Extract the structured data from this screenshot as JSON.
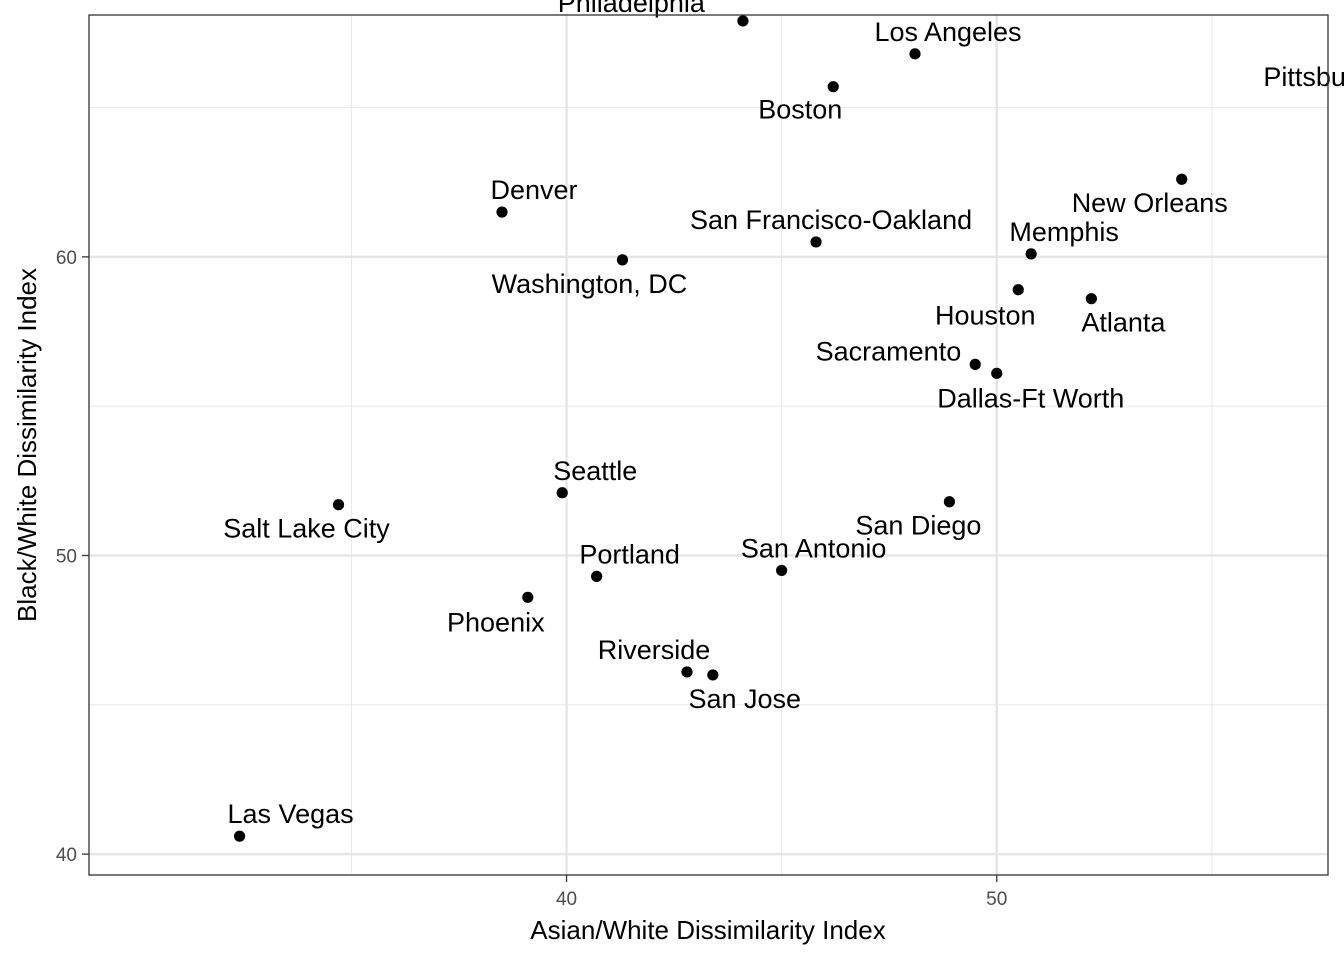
{
  "chart_data": {
    "type": "scatter",
    "xlabel": "Asian/White Dissimilarity Index",
    "ylabel": "Black/White Dissimilarity Index",
    "xlim": [
      28.9,
      57.7
    ],
    "ylim": [
      39.3,
      68.1
    ],
    "x_major_ticks": [
      40,
      50
    ],
    "y_major_ticks": [
      40,
      50,
      60
    ],
    "x_minor_ticks": [
      35,
      45,
      55
    ],
    "y_minor_ticks": [
      45,
      55,
      65
    ],
    "grid": true,
    "theme": "black-and-white",
    "points": [
      {
        "label": "Philadelphia",
        "x": 44.1,
        "y": 67.9
      },
      {
        "label": "Los Angeles",
        "x": 48.1,
        "y": 66.8
      },
      {
        "label": "Pittsburgh",
        "x": 58.4,
        "y": 66.8
      },
      {
        "label": "Boston",
        "x": 46.2,
        "y": 65.7
      },
      {
        "label": "New Orleans",
        "x": 54.3,
        "y": 62.6
      },
      {
        "label": "Denver",
        "x": 38.5,
        "y": 61.5
      },
      {
        "label": "San Francisco-Oakland",
        "x": 45.8,
        "y": 60.5
      },
      {
        "label": "Memphis",
        "x": 50.8,
        "y": 60.1
      },
      {
        "label": "Washington, DC",
        "x": 41.3,
        "y": 59.9
      },
      {
        "label": "Houston",
        "x": 50.5,
        "y": 58.9
      },
      {
        "label": "Atlanta",
        "x": 52.2,
        "y": 58.6
      },
      {
        "label": "Sacramento",
        "x": 49.5,
        "y": 56.4
      },
      {
        "label": "Dallas-Ft Worth",
        "x": 50.0,
        "y": 56.1
      },
      {
        "label": "Seattle",
        "x": 39.9,
        "y": 52.1
      },
      {
        "label": "San Diego",
        "x": 48.9,
        "y": 51.8
      },
      {
        "label": "Salt Lake City",
        "x": 34.7,
        "y": 51.7
      },
      {
        "label": "San Antonio",
        "x": 45.0,
        "y": 49.5
      },
      {
        "label": "Portland",
        "x": 40.7,
        "y": 49.3
      },
      {
        "label": "Phoenix",
        "x": 39.1,
        "y": 48.6
      },
      {
        "label": "Riverside",
        "x": 42.8,
        "y": 46.1
      },
      {
        "label": "San Jose",
        "x": 43.4,
        "y": 46.0
      },
      {
        "label": "Las Vegas",
        "x": 32.4,
        "y": 40.6
      }
    ]
  }
}
